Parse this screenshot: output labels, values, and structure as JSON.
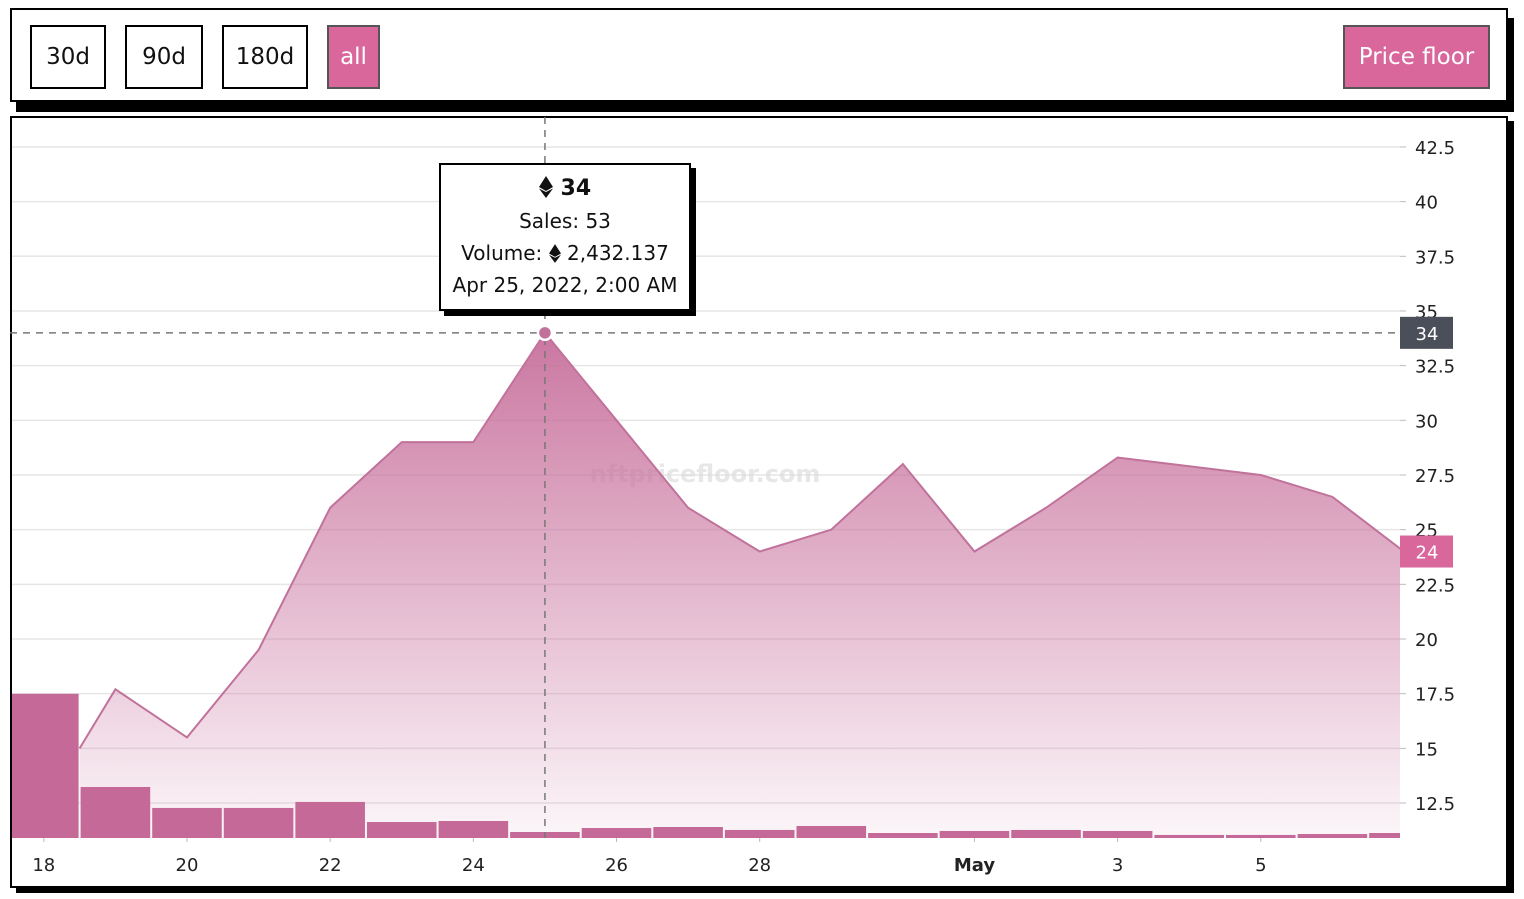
{
  "controls": {
    "ranges": [
      "30d",
      "90d",
      "180d",
      "all"
    ],
    "selected": 3,
    "metric": "Price floor"
  },
  "chart_data": {
    "type": "area",
    "watermark": "nftpricefloor.com",
    "ylim": [
      10.9,
      43.87
    ],
    "yticks": [
      12.5,
      15,
      17.5,
      20,
      22.5,
      25,
      27.5,
      30,
      32.5,
      35,
      37.5,
      40,
      42.5
    ],
    "y2lim": [
      0,
      6360
    ],
    "xlim": [
      "2022-04-17T13:20",
      "2022-05-06T22:40"
    ],
    "xticks": [
      {
        "value": "2022-04-18",
        "label": "18"
      },
      {
        "value": "2022-04-20",
        "label": "20"
      },
      {
        "value": "2022-04-22",
        "label": "22"
      },
      {
        "value": "2022-04-24",
        "label": "24"
      },
      {
        "value": "2022-04-26",
        "label": "26"
      },
      {
        "value": "2022-04-28",
        "label": "28"
      },
      {
        "value": "2022-05-01",
        "label": "May"
      },
      {
        "value": "2022-05-03",
        "label": "3"
      },
      {
        "value": "2022-05-05",
        "label": "5"
      }
    ],
    "grid": true,
    "price": {
      "color": "#c0729b",
      "x": [
        "2022-04-18T12:00",
        "2022-04-19",
        "2022-04-20",
        "2022-04-21",
        "2022-04-22",
        "2022-04-23",
        "2022-04-24",
        "2022-04-25",
        "2022-04-26",
        "2022-04-27",
        "2022-04-28",
        "2022-04-29",
        "2022-04-30",
        "2022-05-01",
        "2022-05-02",
        "2022-05-03",
        "2022-05-04",
        "2022-05-05",
        "2022-05-06",
        "2022-05-07"
      ],
      "values": [
        15,
        17.7,
        15.5,
        19.5,
        26,
        29,
        29,
        34,
        30,
        26,
        24,
        25,
        28,
        24,
        26,
        28.3,
        27.9,
        27.5,
        26.5,
        24
      ]
    },
    "sales": {
      "color": "#c56a98",
      "axis": "y2",
      "x": [
        "2022-04-18",
        "2022-04-19",
        "2022-04-20",
        "2022-04-21",
        "2022-04-22",
        "2022-04-23",
        "2022-04-24",
        "2022-04-25",
        "2022-04-26",
        "2022-04-27",
        "2022-04-28",
        "2022-04-29",
        "2022-04-30",
        "2022-05-01",
        "2022-05-02",
        "2022-05-03",
        "2022-05-04",
        "2022-05-05",
        "2022-05-06",
        "2022-05-07"
      ],
      "values": [
        1272,
        450,
        265,
        265,
        318,
        141,
        150,
        53,
        88,
        97,
        71,
        106,
        44,
        62,
        71,
        62,
        27,
        27,
        35,
        44
      ]
    },
    "tooltip": {
      "index": 7,
      "sales_label": "Sales:",
      "volume_label": "Volume:",
      "volume": {
        "value": 2432.137,
        "label": "2,432.137"
      },
      "date": "Apr 25, 2022, 2:00 AM"
    }
  }
}
